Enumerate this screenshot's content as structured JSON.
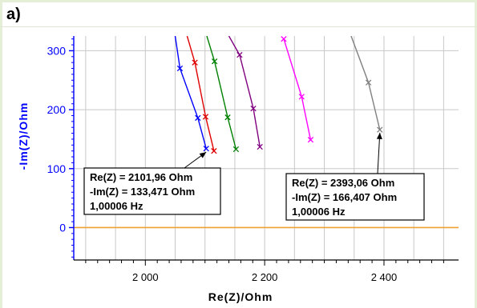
{
  "panel_label": "a)",
  "chart_data": {
    "type": "line",
    "title": "",
    "xlabel": "Re(Z)/Ohm",
    "ylabel": "-Im(Z)/Ohm",
    "xlim": [
      1880,
      2525
    ],
    "ylim": [
      -55,
      325
    ],
    "xticks": [
      {
        "value": 2000,
        "label": "2 000"
      },
      {
        "value": 2200,
        "label": "2 200"
      },
      {
        "value": 2400,
        "label": "2 400"
      }
    ],
    "yticks": [
      {
        "value": 0,
        "label": "0"
      },
      {
        "value": 100,
        "label": "100"
      },
      {
        "value": 200,
        "label": "200"
      },
      {
        "value": 300,
        "label": "300"
      }
    ],
    "grid": true,
    "zero_line_color": "#f0a030",
    "colors": {
      "axis_y": "#0000ff",
      "axis_x": "#000000",
      "grid": "#c8c8c8"
    },
    "series": [
      {
        "color": "#0000ff",
        "points": [
          [
            2050,
            325
          ],
          [
            2058,
            270
          ],
          [
            2088,
            186
          ],
          [
            2102,
            134
          ]
        ]
      },
      {
        "color": "#e00000",
        "points": [
          [
            2070,
            325
          ],
          [
            2083,
            280
          ],
          [
            2101,
            188
          ],
          [
            2115,
            130
          ]
        ]
      },
      {
        "color": "#008000",
        "points": [
          [
            2103,
            325
          ],
          [
            2116,
            282
          ],
          [
            2138,
            187
          ],
          [
            2152,
            133
          ]
        ]
      },
      {
        "color": "#800080",
        "points": [
          [
            2140,
            325
          ],
          [
            2158,
            293
          ],
          [
            2181,
            202
          ],
          [
            2192,
            137
          ]
        ]
      },
      {
        "color": "#ff00ff",
        "points": [
          [
            2232,
            320
          ],
          [
            2262,
            222
          ],
          [
            2277,
            149
          ]
        ]
      },
      {
        "color": "#808080",
        "points": [
          [
            2345,
            325
          ],
          [
            2374,
            246
          ],
          [
            2393,
            166
          ]
        ]
      }
    ],
    "annotations": [
      {
        "lines": [
          "Re(Z) = 2101,96 Ohm",
          "-Im(Z) = 133,471 Ohm",
          "1,00006 Hz"
        ],
        "target": [
          2101.96,
          133.471
        ]
      },
      {
        "lines": [
          "Re(Z) = 2393,06 Ohm",
          "-Im(Z) = 166,407 Ohm",
          "1,00006 Hz"
        ],
        "target": [
          2393.06,
          166.407
        ]
      }
    ]
  }
}
